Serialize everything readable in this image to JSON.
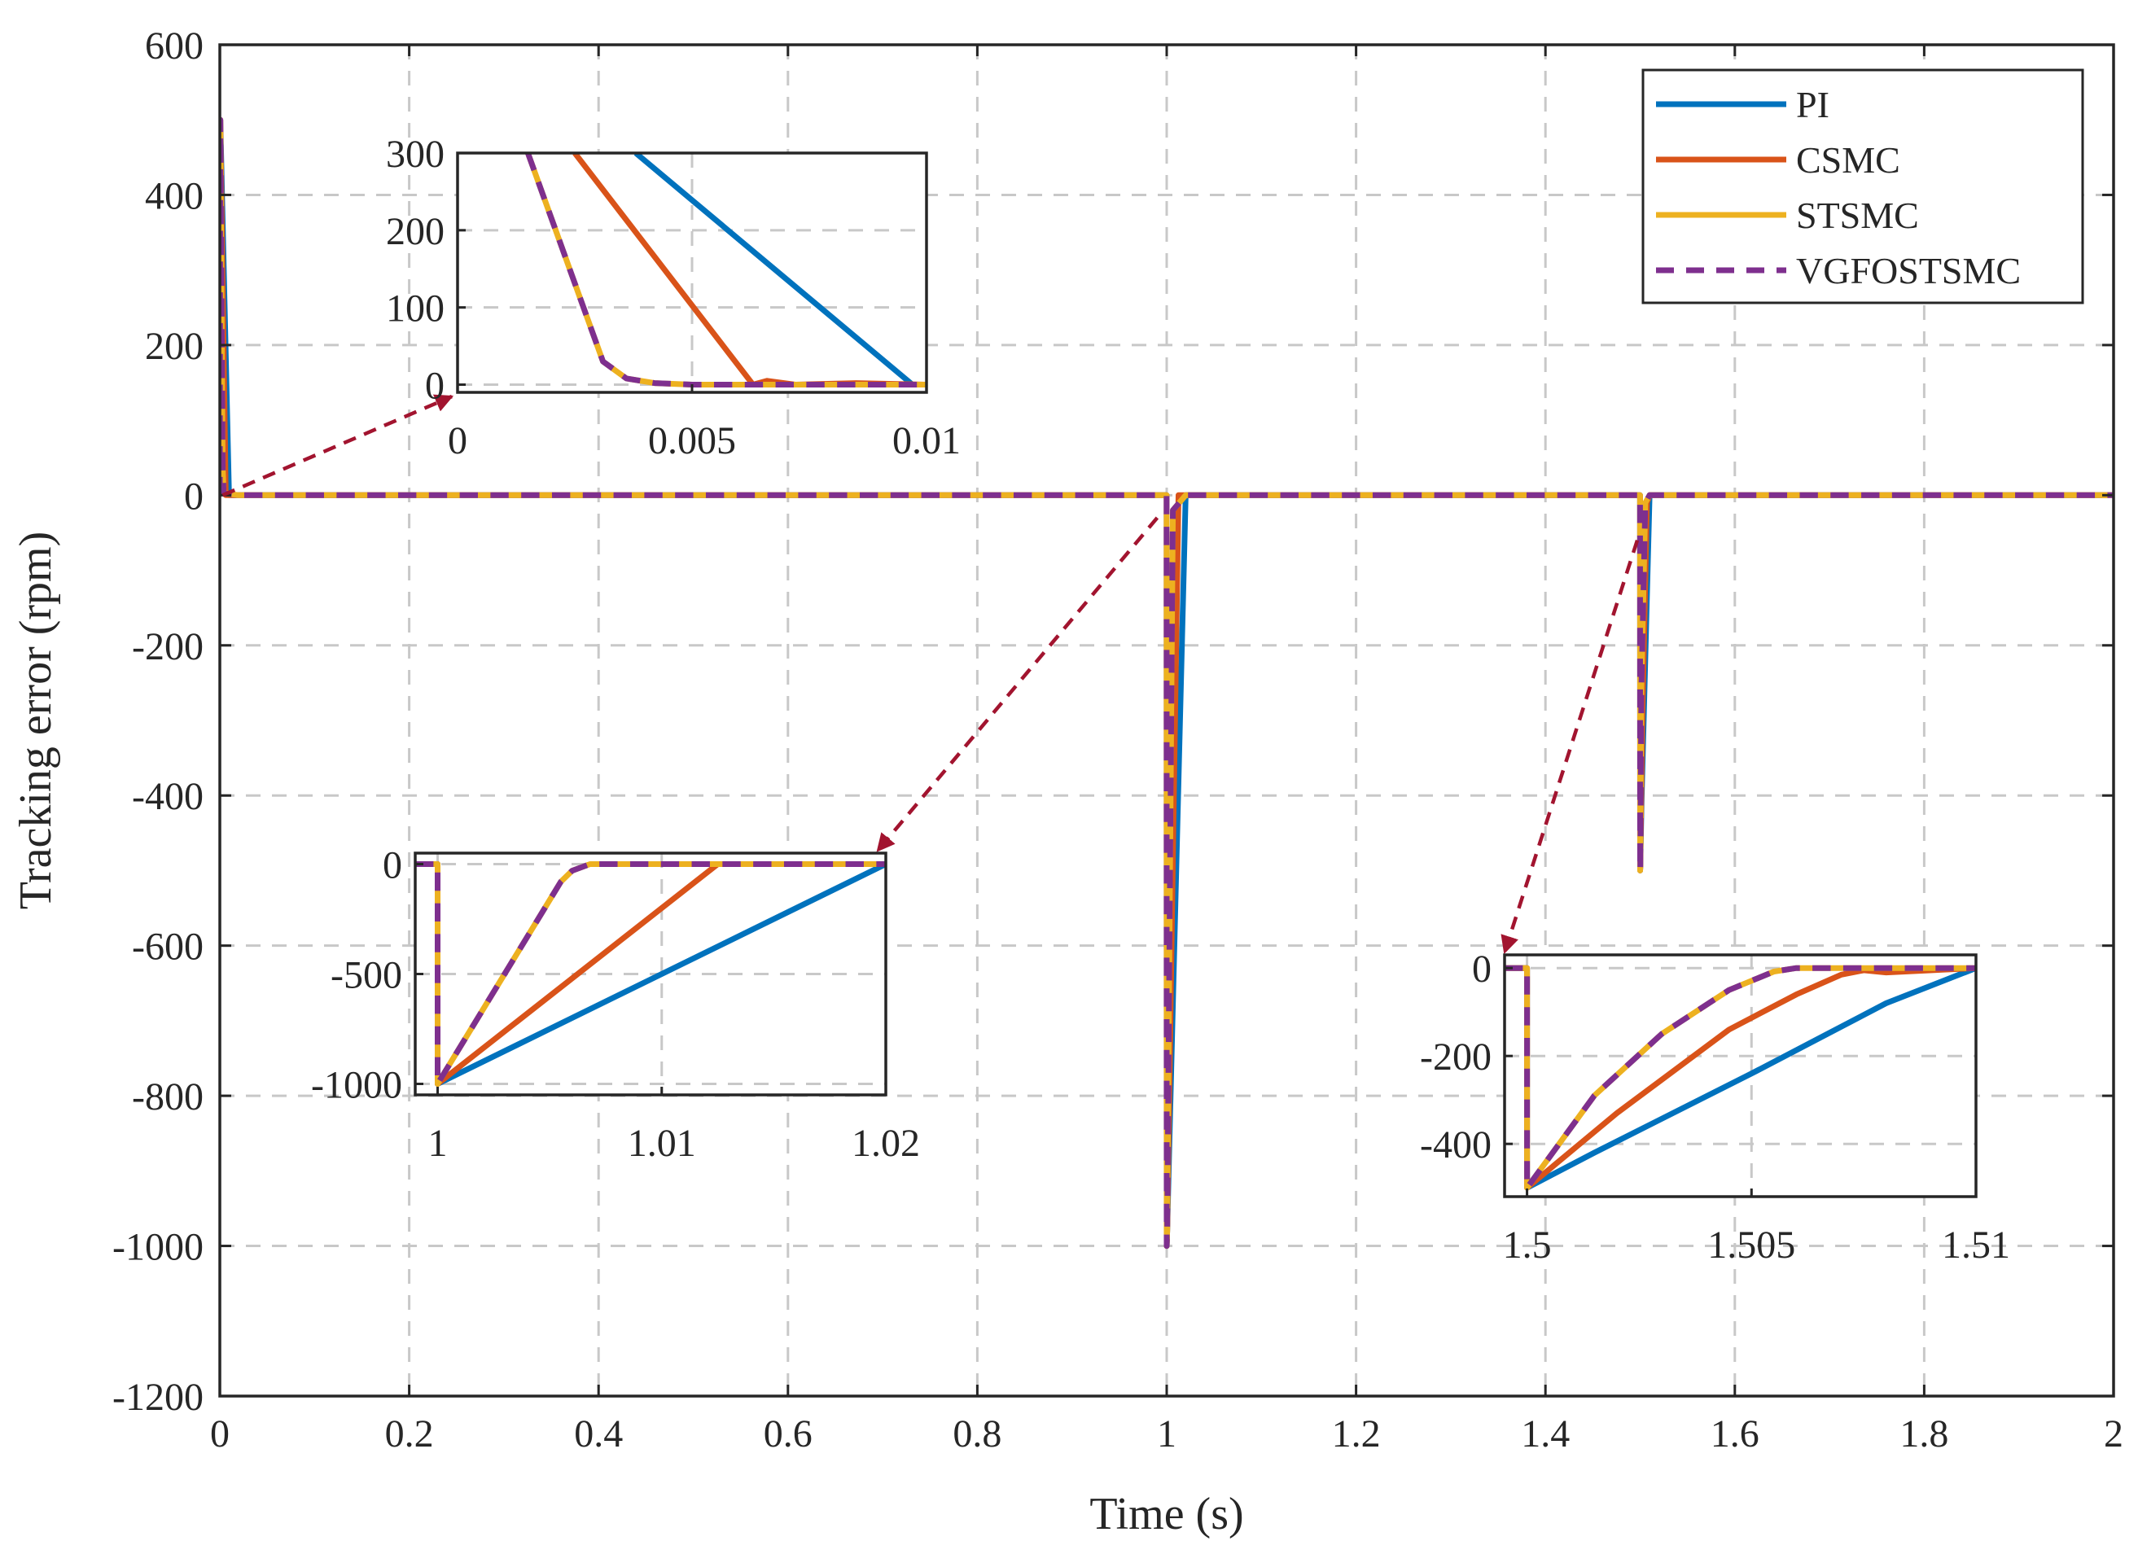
{
  "chart_data": {
    "type": "line",
    "title": "",
    "xlabel": "Time (s)",
    "ylabel": "Tracking error (rpm)",
    "xlim": [
      0,
      2
    ],
    "ylim": [
      -1200,
      600
    ],
    "xticks": [
      0,
      0.2,
      0.4,
      0.6,
      0.8,
      1,
      1.2,
      1.4,
      1.6,
      1.8,
      2
    ],
    "xtick_labels": [
      "0",
      "0.2",
      "0.4",
      "0.6",
      "0.8",
      "1",
      "1.2",
      "1.4",
      "1.6",
      "1.8",
      "2"
    ],
    "yticks": [
      -1200,
      -1000,
      -800,
      -600,
      -400,
      -200,
      0,
      200,
      400,
      600
    ],
    "ytick_labels": [
      "-1200",
      "-1000",
      "-800",
      "-600",
      "-400",
      "-200",
      "0",
      "200",
      "400",
      "600"
    ],
    "grid": true,
    "legend_position": "top-right",
    "colors": {
      "PI": "#0072BD",
      "CSMC": "#D95319",
      "STSMC": "#EDB120",
      "VGFOSTSMC": "#7E2F8E",
      "arrow": "#A2142F"
    },
    "series": [
      {
        "name": "PI",
        "x": [
          0,
          0.0005,
          0.0097,
          0.02,
          0.9999,
          1.0,
          1.0005,
          1.02,
          1.4999,
          1.5,
          1.5002,
          1.5015,
          1.51,
          2.0
        ],
        "y": [
          0,
          500,
          0,
          0,
          0,
          -1000,
          -980,
          0,
          0,
          -500,
          -495,
          -410,
          0,
          0
        ]
      },
      {
        "name": "CSMC",
        "x": [
          0,
          0.0005,
          0.0063,
          0.02,
          0.9999,
          1.0,
          1.0005,
          1.0125,
          1.4999,
          1.5,
          1.5002,
          1.5025,
          1.5072,
          1.51,
          2.0
        ],
        "y": [
          0,
          500,
          0,
          0,
          0,
          -1000,
          -980,
          0,
          0,
          -500,
          -495,
          -290,
          -10,
          0,
          0
        ]
      },
      {
        "name": "STSMC",
        "x": [
          0,
          0.0005,
          0.003,
          0.004,
          0.02,
          0.9999,
          1.0,
          1.0005,
          1.0065,
          1.02,
          1.4999,
          1.5,
          1.5002,
          1.5013,
          1.5055,
          1.51,
          2.0
        ],
        "y": [
          0,
          500,
          40,
          3,
          0,
          0,
          -1000,
          -980,
          -20,
          0,
          0,
          -500,
          -495,
          -260,
          -10,
          0,
          0
        ]
      },
      {
        "name": "VGFOSTSMC",
        "x": [
          0,
          0.0005,
          0.003,
          0.004,
          0.02,
          0.9999,
          1.0,
          1.0005,
          1.0065,
          1.02,
          1.4999,
          1.5,
          1.5002,
          1.5013,
          1.5055,
          1.51,
          2.0
        ],
        "y": [
          0,
          500,
          40,
          3,
          0,
          0,
          -1000,
          -980,
          -20,
          0,
          0,
          -500,
          -495,
          -260,
          -10,
          0,
          0
        ]
      }
    ],
    "insets": [
      {
        "name": "inset-start",
        "xlim": [
          0,
          0.01
        ],
        "ylim": [
          -10,
          300
        ],
        "xticks": [
          0,
          0.005,
          0.01
        ],
        "xtick_labels": [
          "0",
          "0.005",
          "0.01"
        ],
        "yticks": [
          0,
          100,
          200,
          300
        ],
        "ytick_labels": [
          "0",
          "100",
          "200",
          "300"
        ],
        "series": [
          {
            "name": "PI",
            "x": [
              0.0038,
              0.0097,
              0.01
            ],
            "y": [
              300,
              0,
              0
            ]
          },
          {
            "name": "CSMC",
            "x": [
              0.0025,
              0.0063,
              0.0066,
              0.0072,
              0.0085,
              0.01
            ],
            "y": [
              300,
              0,
              5,
              0,
              2,
              0
            ]
          },
          {
            "name": "STSMC",
            "x": [
              0.0015,
              0.0031,
              0.0036,
              0.0042,
              0.005,
              0.01
            ],
            "y": [
              300,
              30,
              8,
              2,
              0,
              0
            ]
          },
          {
            "name": "VGFOSTSMC",
            "x": [
              0.0015,
              0.0031,
              0.0036,
              0.0042,
              0.005,
              0.01
            ],
            "y": [
              300,
              30,
              8,
              2,
              0,
              0
            ]
          }
        ]
      },
      {
        "name": "inset-step1",
        "xlim": [
          0.999,
          1.02
        ],
        "ylim": [
          -1050,
          50
        ],
        "xticks": [
          1,
          1.01,
          1.02
        ],
        "xtick_labels": [
          "1",
          "1.01",
          "1.02"
        ],
        "yticks": [
          -1000,
          -500,
          0
        ],
        "ytick_labels": [
          "-1000",
          "-500",
          "0"
        ],
        "series": [
          {
            "name": "PI",
            "x": [
              0.999,
              1.0,
              1.0,
              1.02
            ],
            "y": [
              0,
              0,
              -1000,
              0
            ]
          },
          {
            "name": "CSMC",
            "x": [
              0.999,
              1.0,
              1.0,
              1.0125,
              1.02
            ],
            "y": [
              0,
              0,
              -1000,
              0,
              0
            ]
          },
          {
            "name": "STSMC",
            "x": [
              0.999,
              1.0,
              1.0,
              1.0055,
              1.006,
              1.0068,
              1.02
            ],
            "y": [
              0,
              0,
              -1000,
              -80,
              -30,
              0,
              0
            ]
          },
          {
            "name": "VGFOSTSMC",
            "x": [
              0.999,
              1.0,
              1.0,
              1.0055,
              1.006,
              1.0068,
              1.02
            ],
            "y": [
              0,
              0,
              -1000,
              -80,
              -30,
              0,
              0
            ]
          }
        ]
      },
      {
        "name": "inset-step2",
        "xlim": [
          1.4995,
          1.51
        ],
        "ylim": [
          -520,
          30
        ],
        "xticks": [
          1.5,
          1.505,
          1.51
        ],
        "xtick_labels": [
          "1.5",
          "1.505",
          "1.51"
        ],
        "yticks": [
          -400,
          -200,
          0
        ],
        "ytick_labels": [
          "-400",
          "-200",
          "0"
        ],
        "series": [
          {
            "name": "PI",
            "x": [
              1.4995,
              1.5,
              1.5,
              1.5015,
              1.505,
              1.508,
              1.51
            ],
            "y": [
              0,
              0,
              -500,
              -420,
              -240,
              -80,
              0
            ]
          },
          {
            "name": "CSMC",
            "x": [
              1.4995,
              1.5,
              1.5,
              1.502,
              1.5045,
              1.506,
              1.507,
              1.5075,
              1.508,
              1.51
            ],
            "y": [
              0,
              0,
              -500,
              -330,
              -140,
              -60,
              -15,
              -5,
              -10,
              0
            ]
          },
          {
            "name": "STSMC",
            "x": [
              1.4995,
              1.5,
              1.5,
              1.5015,
              1.503,
              1.5045,
              1.5055,
              1.506,
              1.51
            ],
            "y": [
              0,
              0,
              -500,
              -290,
              -150,
              -50,
              -8,
              0,
              0
            ]
          },
          {
            "name": "VGFOSTSMC",
            "x": [
              1.4995,
              1.5,
              1.5,
              1.5015,
              1.503,
              1.5045,
              1.5055,
              1.506,
              1.51
            ],
            "y": [
              0,
              0,
              -500,
              -290,
              -150,
              -50,
              -8,
              0,
              0
            ]
          }
        ]
      }
    ],
    "legend": [
      "PI",
      "CSMC",
      "STSMC",
      "VGFOSTSMC"
    ]
  }
}
